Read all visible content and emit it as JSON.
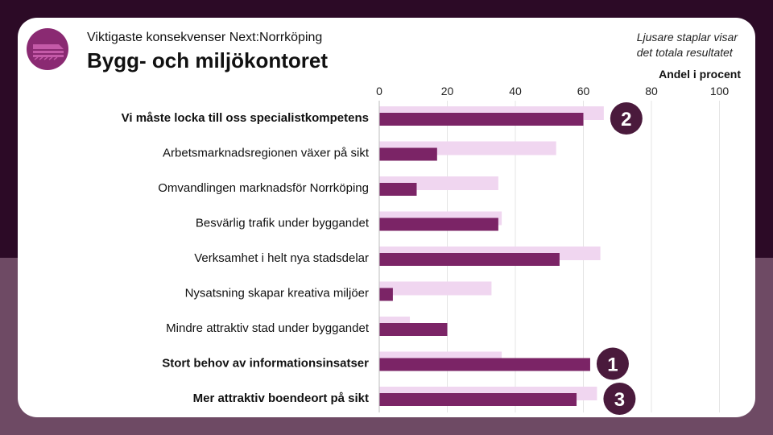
{
  "header": {
    "subtitle": "Viktigaste konsekvenser Next:Norrköping",
    "title": "Bygg- och miljökontoret",
    "note_line1": "Ljusare staplar visar",
    "note_line2": "det totala resultatet",
    "logo_icon": "train-logo-icon"
  },
  "chart_data": {
    "type": "bar",
    "orientation": "horizontal",
    "xlabel": "Andel i procent",
    "xlim": [
      0,
      100
    ],
    "xticks": [
      "0",
      "20",
      "40",
      "60",
      "80",
      "100"
    ],
    "categories": [
      "Vi måste locka till oss specialistkompetens",
      "Arbetsmarknadsregionen växer på sikt",
      "Omvandlingen marknadsför Norrköping",
      "Besvärlig trafik under byggandet",
      "Verksamhet i helt nya stadsdelar",
      "Nysatsning skapar kreativa miljöer",
      "Mindre attraktiv stad under byggandet",
      "Stort behov av informationsinsatser",
      "Mer attraktiv boendeort på sikt"
    ],
    "bold_categories": [
      0,
      7,
      8
    ],
    "series": [
      {
        "name": "Totalt resultat",
        "values": [
          66,
          52,
          35,
          36,
          65,
          33,
          9,
          36,
          64
        ]
      },
      {
        "name": "Bygg- och miljökontoret",
        "values": [
          60,
          17,
          11,
          35,
          53,
          4,
          20,
          62,
          58
        ]
      }
    ],
    "rank_badges": [
      {
        "category_index": 0,
        "label": "2"
      },
      {
        "category_index": 7,
        "label": "1"
      },
      {
        "category_index": 8,
        "label": "3"
      }
    ],
    "colors": {
      "total": "#f0d6f0",
      "unit": "#7b2466",
      "badge": "#4a1a3c",
      "grid": "#e4e4e4"
    }
  }
}
